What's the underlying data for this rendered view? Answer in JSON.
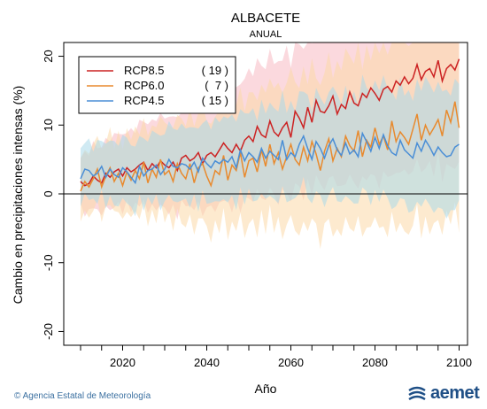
{
  "chart_data": {
    "type": "line",
    "title": "ALBACETE",
    "subtitle": "ANUAL",
    "xlabel": "Año",
    "ylabel": "Cambio en precipitaciones intensas (%)",
    "xlim": [
      2006,
      2102
    ],
    "ylim": [
      -22,
      22
    ],
    "xticks": [
      2020,
      2040,
      2060,
      2080,
      2100
    ],
    "yticks": [
      -20,
      -10,
      0,
      10,
      20
    ],
    "zero_line": true,
    "legend_position": "top-left",
    "x_start": 2010,
    "series": [
      {
        "name": "RCP8.5",
        "count": "( 19 )",
        "color": "#cc2222",
        "band_color": "#f7b9c3",
        "values": [
          1.8,
          1.2,
          1.5,
          2.6,
          2.0,
          1.6,
          3.0,
          2.4,
          3.2,
          3.6,
          2.6,
          3.8,
          3.2,
          3.6,
          4.2,
          4.6,
          3.4,
          4.4,
          3.8,
          4.8,
          4.2,
          3.8,
          4.6,
          3.4,
          5.2,
          5.6,
          4.8,
          5.2,
          6.0,
          4.4,
          5.6,
          6.0,
          5.4,
          6.4,
          7.4,
          6.6,
          6.0,
          7.2,
          6.2,
          7.8,
          8.4,
          7.6,
          9.8,
          8.6,
          8.2,
          10.6,
          9.0,
          8.4,
          9.6,
          10.4,
          8.2,
          12.0,
          11.0,
          9.6,
          12.6,
          10.4,
          13.6,
          12.0,
          11.8,
          12.8,
          14.2,
          11.6,
          13.0,
          12.4,
          14.8,
          13.2,
          12.8,
          14.6,
          14.0,
          15.4,
          14.6,
          13.6,
          15.2,
          15.6,
          14.8,
          16.4,
          15.8,
          17.0,
          16.0,
          16.8,
          18.8,
          16.6,
          17.8,
          18.2,
          17.0,
          19.4,
          16.4,
          18.2,
          18.8,
          18.0,
          19.6
        ]
      },
      {
        "name": "RCP6.0",
        "count": "(  7 )",
        "color": "#e88a2e",
        "band_color": "#fcd9a8",
        "values": [
          0.4,
          1.8,
          1.0,
          2.2,
          3.6,
          1.0,
          2.6,
          3.8,
          1.8,
          3.0,
          1.2,
          3.2,
          2.0,
          3.4,
          2.2,
          4.6,
          1.6,
          3.6,
          2.4,
          5.0,
          2.8,
          3.4,
          1.8,
          4.4,
          3.0,
          2.2,
          4.4,
          1.6,
          3.8,
          4.4,
          2.6,
          1.2,
          3.4,
          2.8,
          5.6,
          2.0,
          4.2,
          3.4,
          6.0,
          2.4,
          4.8,
          5.2,
          3.2,
          6.4,
          4.0,
          7.2,
          4.4,
          6.0,
          3.6,
          5.4,
          7.2,
          5.0,
          4.2,
          6.8,
          4.8,
          7.6,
          5.8,
          3.4,
          6.2,
          8.0,
          4.8,
          6.6,
          5.4,
          8.4,
          7.0,
          6.2,
          9.2,
          5.4,
          7.8,
          6.8,
          9.6,
          7.2,
          8.4,
          6.4,
          10.6,
          7.6,
          9.0,
          8.2,
          7.2,
          9.4,
          11.6,
          7.8,
          10.0,
          8.6,
          9.6,
          10.8,
          8.4,
          12.2,
          10.4,
          13.4,
          9.6
        ]
      },
      {
        "name": "RCP4.5",
        "count": "( 15 )",
        "color": "#4a8ed6",
        "band_color": "#a9d9ea",
        "values": [
          2.2,
          3.6,
          3.4,
          2.6,
          3.0,
          4.0,
          2.4,
          3.6,
          2.8,
          2.4,
          3.8,
          3.2,
          2.4,
          1.6,
          4.0,
          2.6,
          3.4,
          3.6,
          4.2,
          2.8,
          3.6,
          5.0,
          4.0,
          3.8,
          4.4,
          4.2,
          3.6,
          4.6,
          3.2,
          5.2,
          4.4,
          3.8,
          4.8,
          4.4,
          5.0,
          4.6,
          5.4,
          3.8,
          6.4,
          4.8,
          6.0,
          5.4,
          4.6,
          6.6,
          5.2,
          6.2,
          5.6,
          5.0,
          7.8,
          5.0,
          6.0,
          5.4,
          7.2,
          8.4,
          6.6,
          5.0,
          7.6,
          6.6,
          5.2,
          7.0,
          8.0,
          6.4,
          5.6,
          7.4,
          5.8,
          6.4,
          5.4,
          8.8,
          7.6,
          6.2,
          8.2,
          6.6,
          8.6,
          7.0,
          6.0,
          5.6,
          7.8,
          6.4,
          5.8,
          5.2,
          7.4,
          6.2,
          7.8,
          6.8,
          5.6,
          6.8,
          6.0,
          5.4,
          5.6,
          6.8,
          7.2
        ]
      }
    ]
  },
  "footer": {
    "credit": "© Agencia Estatal de Meteorología",
    "logo_text": "aemet"
  }
}
